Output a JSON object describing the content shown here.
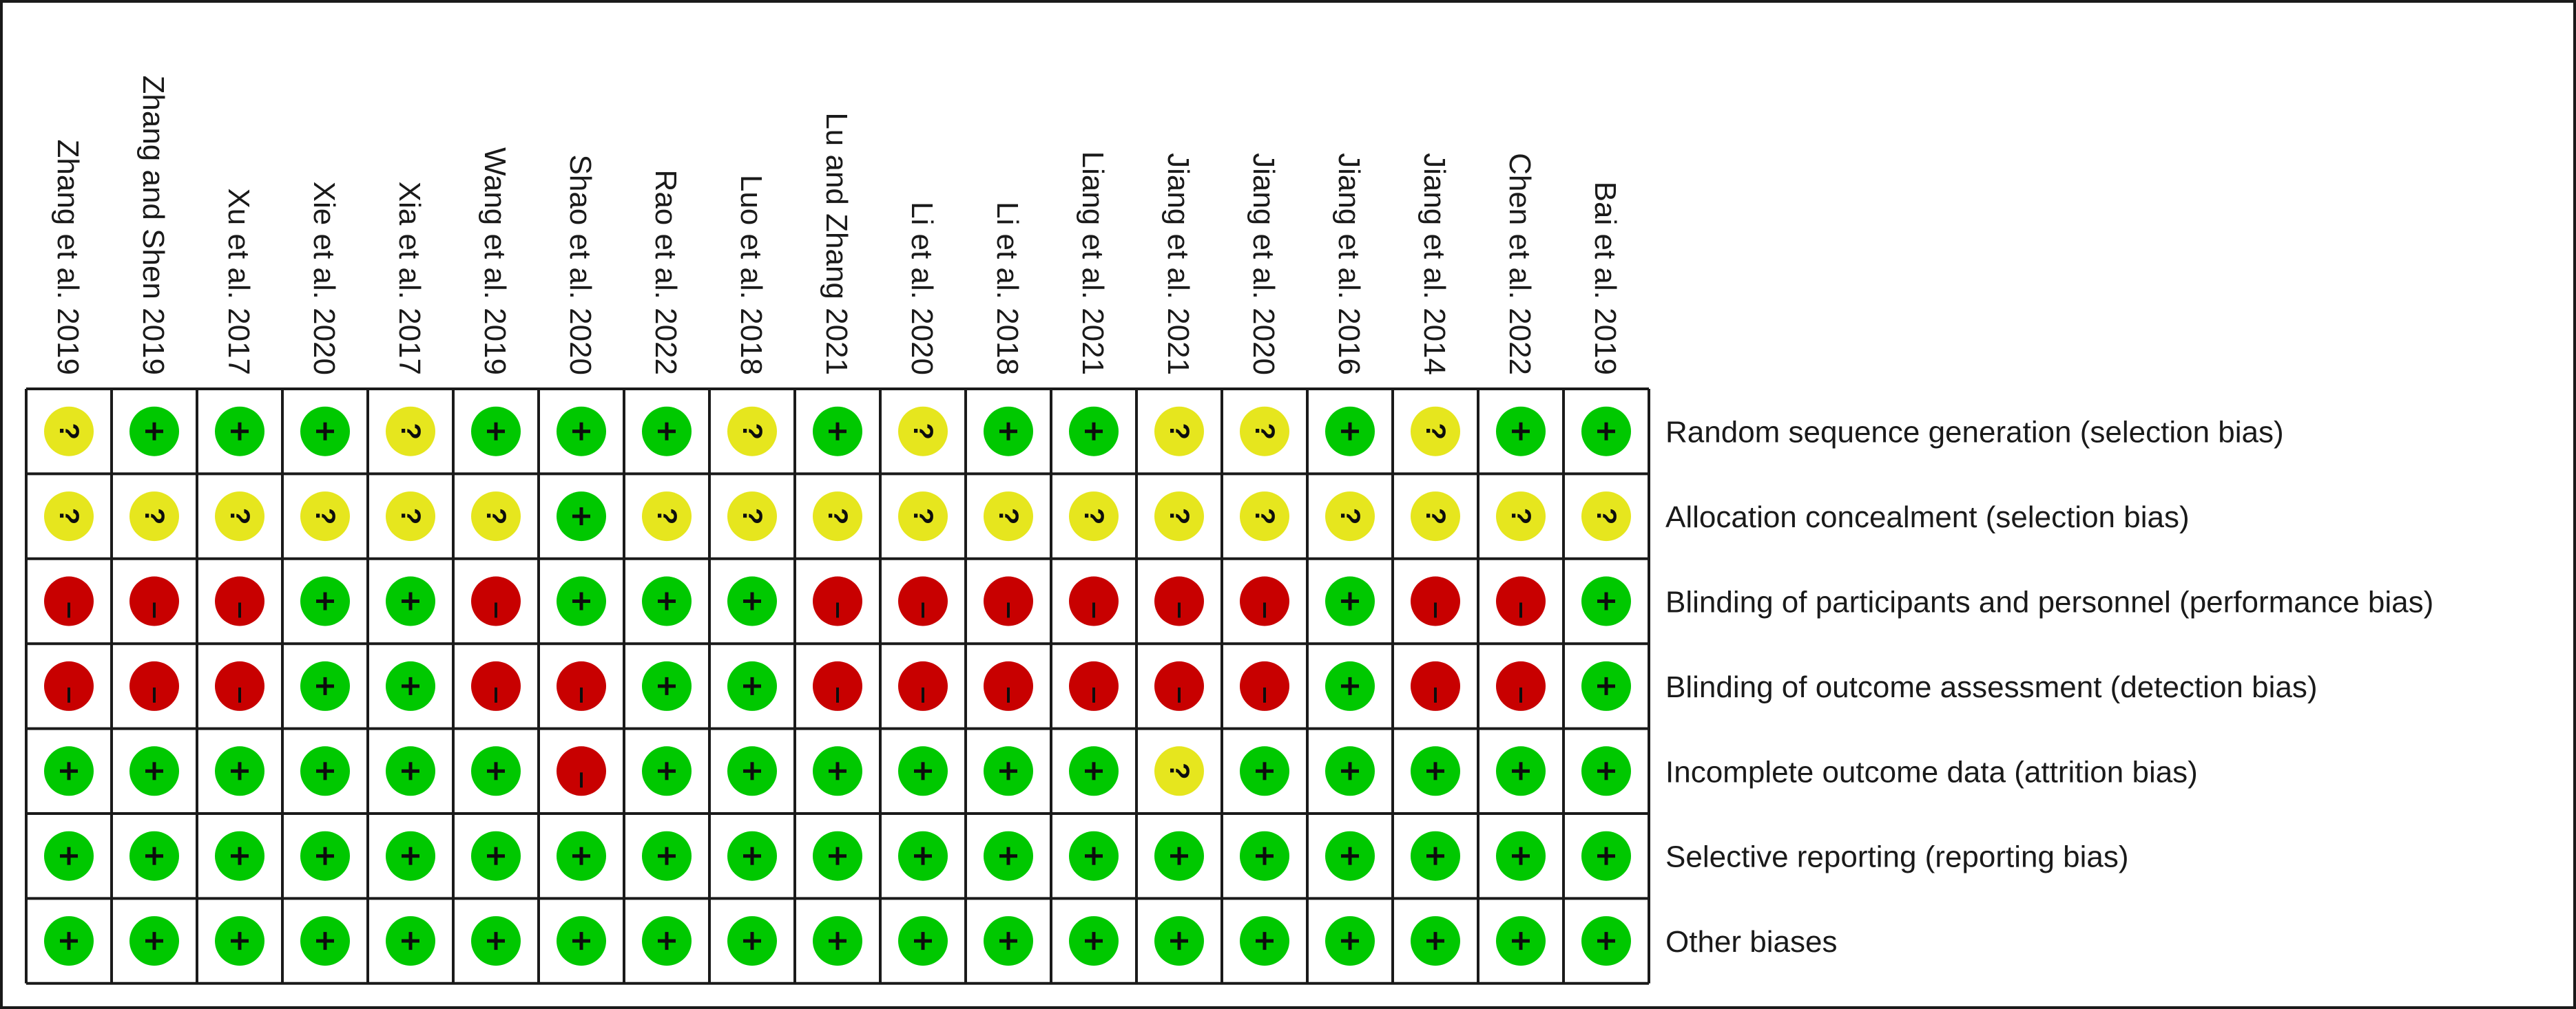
{
  "studies": [
    "Zhang et al. 2019",
    "Zhang and Shen 2019",
    "Xu et al. 2017",
    "Xie et al. 2020",
    "Xia et al. 2017",
    "Wang et al. 2019",
    "Shao et al. 2020",
    "Rao et al. 2022",
    "Luo et al. 2018",
    "Lu and Zhang 2021",
    "Li et al. 2020",
    "Li et al. 2018",
    "Liang et al. 2021",
    "Jiang et al. 2021",
    "Jiang et al. 2020",
    "Jiang et al. 2016",
    "Jiang et al. 2014",
    "Chen et al. 2022",
    "Bai et al. 2019"
  ],
  "domains": [
    "Random sequence generation (selection bias)",
    "Allocation concealment (selection bias)",
    "Blinding of participants and personnel (performance bias)",
    "Blinding of outcome assessment (detection bias)",
    "Incomplete outcome data (attrition bias)",
    "Selective reporting (reporting bias)",
    "Other biases"
  ],
  "judgements": [
    [
      "unclear",
      "low",
      "low",
      "low",
      "unclear",
      "low",
      "low",
      "low",
      "unclear",
      "low",
      "unclear",
      "low",
      "low",
      "unclear",
      "unclear",
      "low",
      "unclear",
      "low",
      "low"
    ],
    [
      "unclear",
      "unclear",
      "unclear",
      "unclear",
      "unclear",
      "unclear",
      "low",
      "unclear",
      "unclear",
      "unclear",
      "unclear",
      "unclear",
      "unclear",
      "unclear",
      "unclear",
      "unclear",
      "unclear",
      "unclear",
      "unclear"
    ],
    [
      "high",
      "high",
      "high",
      "low",
      "low",
      "high",
      "low",
      "low",
      "low",
      "high",
      "high",
      "high",
      "high",
      "high",
      "high",
      "low",
      "high",
      "high",
      "low"
    ],
    [
      "high",
      "high",
      "high",
      "low",
      "low",
      "high",
      "high",
      "low",
      "low",
      "high",
      "high",
      "high",
      "high",
      "high",
      "high",
      "low",
      "high",
      "high",
      "low"
    ],
    [
      "low",
      "low",
      "low",
      "low",
      "low",
      "low",
      "high",
      "low",
      "low",
      "low",
      "low",
      "low",
      "low",
      "unclear",
      "low",
      "low",
      "low",
      "low",
      "low"
    ],
    [
      "low",
      "low",
      "low",
      "low",
      "low",
      "low",
      "low",
      "low",
      "low",
      "low",
      "low",
      "low",
      "low",
      "low",
      "low",
      "low",
      "low",
      "low",
      "low"
    ],
    [
      "low",
      "low",
      "low",
      "low",
      "low",
      "low",
      "low",
      "low",
      "low",
      "low",
      "low",
      "low",
      "low",
      "low",
      "low",
      "low",
      "low",
      "low",
      "low"
    ]
  ],
  "symbols": {
    "low": "+",
    "unclear": "?",
    "high": "–"
  },
  "colors": {
    "low": "#00c800",
    "unclear": "#e6e61e",
    "high": "#c80000",
    "grid": "#1a1a1a",
    "text": "#1a1a1a"
  }
}
